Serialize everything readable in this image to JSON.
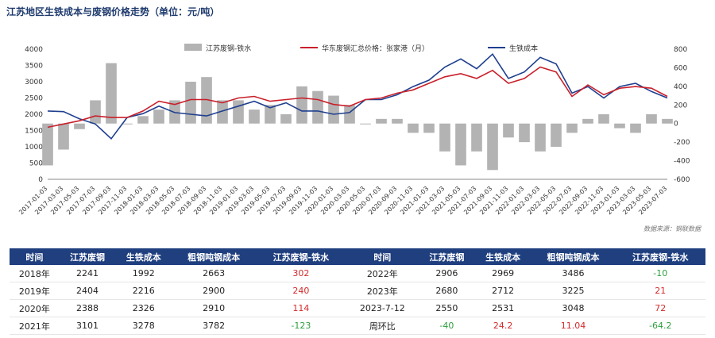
{
  "title": "江苏地区生铁成本与废钢价格走势（单位：元/吨）",
  "source": "数据来源：钢联数据",
  "chart_data": {
    "type": "line",
    "legend": [
      {
        "name": "江苏废钢-铁水",
        "kind": "bar",
        "color": "#b3b3b3"
      },
      {
        "name": "华东废钢汇总价格：张家港（月）",
        "kind": "line",
        "color": "#c9202b"
      },
      {
        "name": "生铁成本",
        "kind": "line",
        "color": "#1f3f8f"
      }
    ],
    "x_ticks": [
      "2017-01-03",
      "2017-03-03",
      "2017-05-03",
      "2017-07-03",
      "2017-09-03",
      "2017-11-03",
      "2018-01-03",
      "2018-03-03",
      "2018-05-03",
      "2018-07-03",
      "2018-09-03",
      "2018-11-03",
      "2019-01-03",
      "2019-03-03",
      "2019-05-03",
      "2019-07-03",
      "2019-09-03",
      "2019-11-03",
      "2020-01-03",
      "2020-03-03",
      "2020-05-03",
      "2020-07-03",
      "2020-09-03",
      "2020-11-03",
      "2021-01-03",
      "2021-03-03",
      "2021-05-03",
      "2021-07-03",
      "2021-09-03",
      "2021-11-03",
      "2022-01-03",
      "2022-03-03",
      "2022-05-03",
      "2022-07-03",
      "2022-09-03",
      "2022-11-03",
      "2023-01-03",
      "2023-03-03",
      "2023-05-03",
      "2023-07-03"
    ],
    "y_left": {
      "min": 0,
      "max": 4000,
      "ticks": [
        0,
        500,
        1000,
        1500,
        2000,
        2500,
        3000,
        3500,
        4000
      ]
    },
    "y_right": {
      "min": -600,
      "max": 800,
      "ticks": [
        -600,
        -400,
        -200,
        0,
        200,
        400,
        600,
        800
      ]
    },
    "series": [
      {
        "name": "生铁成本",
        "axis": "left",
        "x": [
          0,
          1,
          2,
          3,
          4,
          5,
          6,
          7,
          8,
          9,
          10,
          11,
          12,
          13,
          14,
          15,
          16,
          17,
          18,
          19,
          20,
          21,
          22,
          23,
          24,
          25,
          26,
          27,
          28,
          29,
          30,
          31,
          32,
          33,
          34,
          35,
          36,
          37,
          38,
          39
        ],
        "values": [
          2100,
          2080,
          1860,
          1700,
          1250,
          1900,
          2020,
          2250,
          2050,
          2000,
          1950,
          2100,
          2250,
          2400,
          2200,
          2350,
          2100,
          2100,
          2000,
          2050,
          2450,
          2450,
          2600,
          2850,
          3050,
          3450,
          3700,
          3400,
          3850,
          3100,
          3300,
          3750,
          3550,
          2650,
          2850,
          2500,
          2850,
          2950,
          2700,
          2500
        ]
      },
      {
        "name": "华东废钢汇总价格：张家港（月）",
        "axis": "left",
        "x": [
          0,
          1,
          2,
          3,
          4,
          5,
          6,
          7,
          8,
          9,
          10,
          11,
          12,
          13,
          14,
          15,
          16,
          17,
          18,
          19,
          20,
          21,
          22,
          23,
          24,
          25,
          26,
          27,
          28,
          29,
          30,
          31,
          32,
          33,
          34,
          35,
          36,
          37,
          38,
          39
        ],
        "values": [
          1600,
          1700,
          1800,
          1950,
          1900,
          1900,
          2100,
          2400,
          2300,
          2450,
          2450,
          2350,
          2500,
          2550,
          2400,
          2450,
          2500,
          2450,
          2300,
          2250,
          2450,
          2500,
          2650,
          2750,
          2950,
          3150,
          3250,
          3100,
          3350,
          2950,
          3100,
          3450,
          3300,
          2550,
          2900,
          2600,
          2800,
          2850,
          2800,
          2550
        ]
      },
      {
        "name": "江苏废钢-铁水",
        "axis": "right",
        "x": [
          0,
          1,
          2,
          3,
          4,
          5,
          6,
          7,
          8,
          9,
          10,
          11,
          12,
          13,
          14,
          15,
          16,
          17,
          18,
          19,
          20,
          21,
          22,
          23,
          24,
          25,
          26,
          27,
          28,
          29,
          30,
          31,
          32,
          33,
          34,
          35,
          36,
          37,
          38,
          39
        ],
        "values": [
          -450,
          -280,
          -60,
          250,
          650,
          0,
          80,
          150,
          250,
          450,
          500,
          250,
          250,
          150,
          200,
          100,
          400,
          350,
          300,
          200,
          0,
          50,
          50,
          -100,
          -100,
          -300,
          -450,
          -300,
          -500,
          -150,
          -200,
          -300,
          -250,
          -100,
          50,
          100,
          -50,
          -100,
          100,
          50
        ]
      }
    ]
  },
  "table": {
    "headers": [
      "时间",
      "江苏废钢",
      "生铁成本",
      "粗钢吨钢成本",
      "江苏废钢-铁水",
      "时间",
      "江苏废钢",
      "生铁成本",
      "粗钢吨钢成本",
      "江苏废钢-铁水"
    ],
    "rows": [
      [
        "2018年",
        "2241",
        "1992",
        "2663",
        "302",
        "2022年",
        "2906",
        "2969",
        "3486",
        "-10"
      ],
      [
        "2019年",
        "2404",
        "2216",
        "2900",
        "240",
        "2023年",
        "2680",
        "2712",
        "3225",
        "21"
      ],
      [
        "2020年",
        "2388",
        "2326",
        "2910",
        "114",
        "2023-7-12",
        "2550",
        "2531",
        "3048",
        "72"
      ],
      [
        "2021年",
        "3101",
        "3278",
        "3782",
        "-123",
        "周环比",
        "-40",
        "24.2",
        "11.04",
        "-64.2"
      ]
    ]
  }
}
